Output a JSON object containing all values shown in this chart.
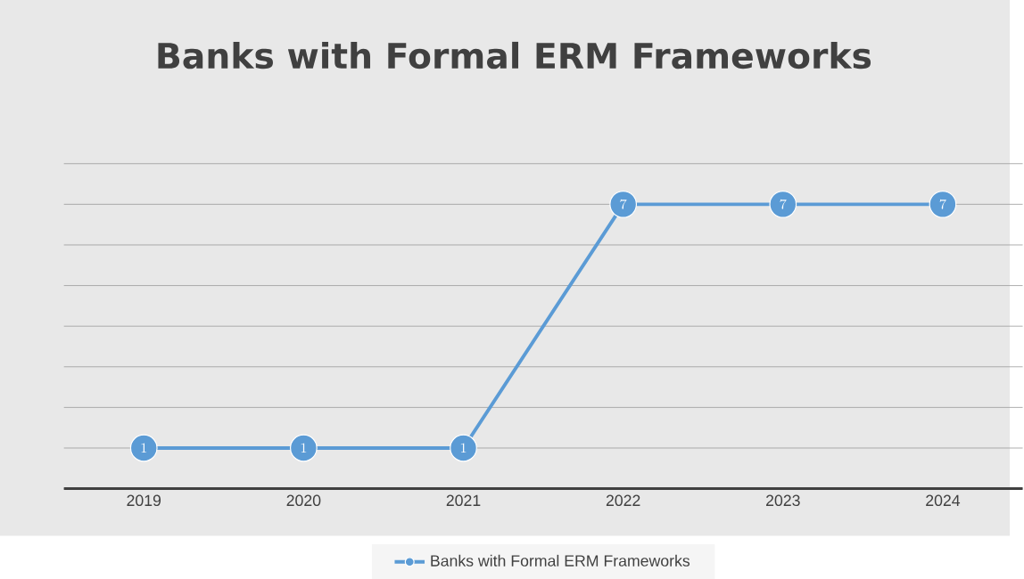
{
  "chart_data": {
    "type": "line",
    "title": "Banks with Formal ERM Frameworks",
    "categories": [
      "2019",
      "2020",
      "2021",
      "2022",
      "2023",
      "2024"
    ],
    "series": [
      {
        "name": "Banks with Formal ERM Frameworks",
        "color": "#5b9bd5",
        "values": [
          1,
          1,
          1,
          7,
          7,
          7
        ]
      }
    ],
    "ylim": [
      0,
      8
    ],
    "yticks": [
      {
        "value": 0,
        "label": null
      },
      {
        "value": 1,
        "label": null
      },
      {
        "value": 2,
        "label": null
      },
      {
        "value": 3,
        "label": null
      },
      {
        "value": 4,
        "label": null
      },
      {
        "value": 5,
        "label": null
      },
      {
        "value": 6,
        "label": null
      },
      {
        "value": 7,
        "label": null
      },
      {
        "value": 8,
        "label": null
      }
    ],
    "tick_labels": "x",
    "grid": "y",
    "legend": "bottom",
    "marker": "circle",
    "line_style": "solid",
    "data_labels": true
  }
}
